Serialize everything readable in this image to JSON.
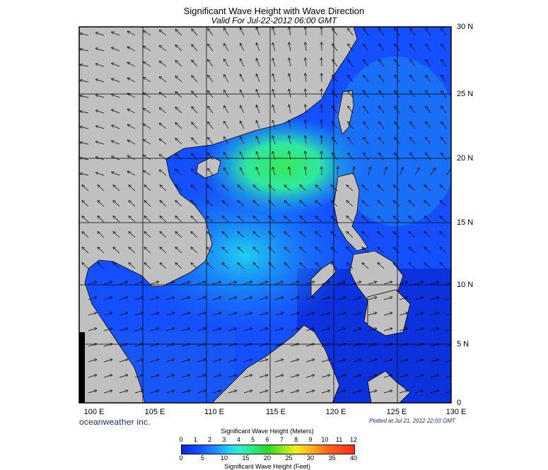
{
  "title": "Significant Wave Height with Wave Direction",
  "subtitle": "Valid For Jul-22-2012 06:00 GMT",
  "lat_labels": [
    "30 N",
    "25 N",
    "20 N",
    "15 N",
    "10 N",
    "5 N",
    "0"
  ],
  "lon_labels": [
    "100 E",
    "105 E",
    "110 E",
    "115 E",
    "120 E",
    "125 E",
    "130 E"
  ],
  "brand": "oceanweather inc.",
  "plotted": "Plotted at Jul 21, 2012 22:03 GMT",
  "legend": {
    "title_meters": "Significant Wave Height (Meters)",
    "title_feet": "Significant Wave Height (Feet)",
    "meter_ticks": [
      "0",
      "1",
      "2",
      "3",
      "4",
      "5",
      "6",
      "7",
      "8",
      "9",
      "10",
      "11",
      "12"
    ],
    "feet_ticks": [
      "0",
      "5",
      "10",
      "15",
      "20",
      "25",
      "30",
      "35",
      "40"
    ]
  },
  "colors": {
    "land": "#c0c0c0",
    "sea_low": "#0a2ad6",
    "sea_mid": "#22d6f0",
    "sea_high": "#27e878"
  }
}
